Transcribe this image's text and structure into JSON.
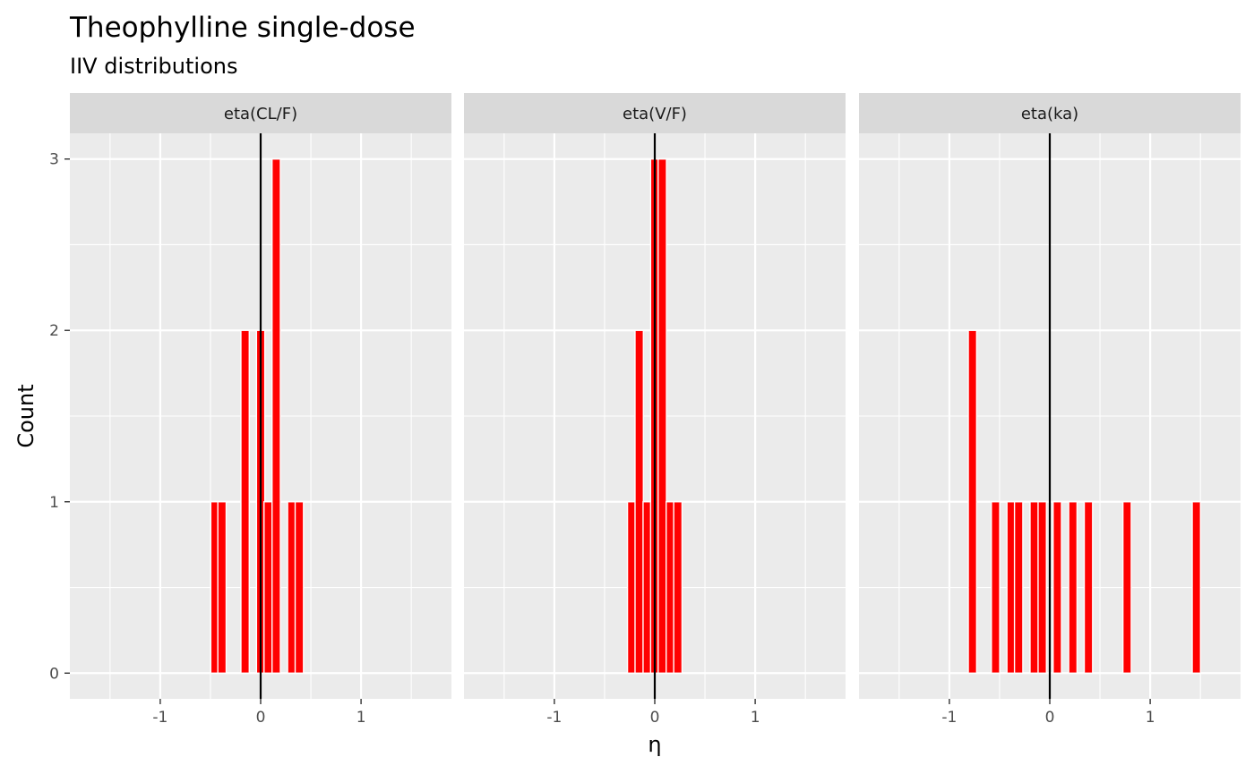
{
  "chart_data": {
    "type": "bar",
    "title": "Theophylline single-dose",
    "subtitle": "IIV distributions",
    "xlabel": "η",
    "ylabel": "Count",
    "xlim": [
      -1.9,
      1.9
    ],
    "ylim": [
      -0.15,
      3.15
    ],
    "x_ticks": [
      -1,
      0,
      1
    ],
    "x_tick_labels": [
      "-1",
      "0",
      "1"
    ],
    "y_ticks": [
      0,
      1,
      2,
      3
    ],
    "y_tick_labels": [
      "0",
      "1",
      "2",
      "3"
    ],
    "bin_width": 0.083,
    "reference_line_x": 0,
    "grid": true,
    "bar_color": "#ff0000",
    "bar_outline": "#ffffff",
    "reference_line_color": "#000000",
    "panel_background": "#ebebeb",
    "strip_background": "#d9d9d9",
    "facets": [
      {
        "label": "eta(CL/F)",
        "bins": [
          {
            "x": -0.455,
            "count": 1
          },
          {
            "x": -0.385,
            "count": 1
          },
          {
            "x": -0.155,
            "count": 2
          },
          {
            "x": 0.0,
            "count": 2
          },
          {
            "x": 0.075,
            "count": 1
          },
          {
            "x": 0.155,
            "count": 3
          },
          {
            "x": 0.31,
            "count": 1
          },
          {
            "x": 0.385,
            "count": 1
          }
        ]
      },
      {
        "label": "eta(V/F)",
        "bins": [
          {
            "x": -0.23,
            "count": 1
          },
          {
            "x": -0.155,
            "count": 2
          },
          {
            "x": -0.075,
            "count": 1
          },
          {
            "x": 0.0,
            "count": 3
          },
          {
            "x": 0.075,
            "count": 3
          },
          {
            "x": 0.155,
            "count": 1
          },
          {
            "x": 0.23,
            "count": 1
          }
        ]
      },
      {
        "label": "eta(ka)",
        "bins": [
          {
            "x": -0.77,
            "count": 2
          },
          {
            "x": -0.54,
            "count": 1
          },
          {
            "x": -0.385,
            "count": 1
          },
          {
            "x": -0.31,
            "count": 1
          },
          {
            "x": -0.155,
            "count": 1
          },
          {
            "x": -0.075,
            "count": 1
          },
          {
            "x": 0.075,
            "count": 1
          },
          {
            "x": 0.23,
            "count": 1
          },
          {
            "x": 0.385,
            "count": 1
          },
          {
            "x": 0.77,
            "count": 1
          },
          {
            "x": 1.46,
            "count": 1
          }
        ]
      }
    ]
  }
}
